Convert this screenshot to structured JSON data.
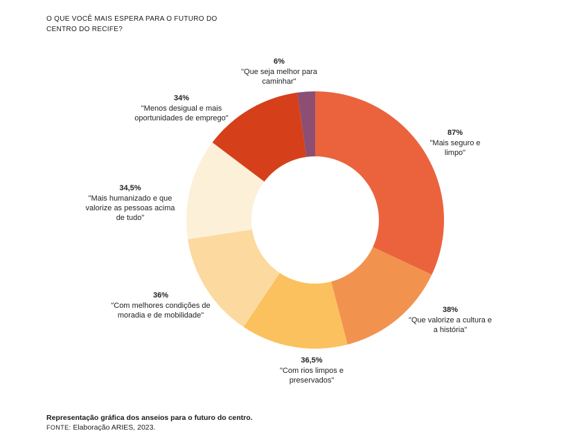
{
  "header": {
    "title_line1": "O QUE VOCÊ MAIS ESPERA PARA O FUTURO DO",
    "title_line2": "CENTRO DO RECIFE?"
  },
  "chart_data": {
    "type": "pie",
    "variant": "donut",
    "slices": [
      {
        "pct_label": "87%",
        "value": 87,
        "label_lines": [
          "\"Mais seguro e",
          "limpo\""
        ],
        "color": "#ea633d"
      },
      {
        "pct_label": "38%",
        "value": 38,
        "label_lines": [
          "\"Que valorize a cultura e",
          "a história\""
        ],
        "color": "#f2924f"
      },
      {
        "pct_label": "36,5%",
        "value": 36.5,
        "label_lines": [
          "\"Com rios limpos e",
          "preservados\""
        ],
        "color": "#fbc15f"
      },
      {
        "pct_label": "36%",
        "value": 36,
        "label_lines": [
          "\"Com melhores condições de",
          "moradia e de mobilidade\""
        ],
        "color": "#fcd99e"
      },
      {
        "pct_label": "34,5%",
        "value": 34.5,
        "label_lines": [
          "\"Mais humanizado e que",
          "valorize as pessoas acima",
          "de tudo\""
        ],
        "color": "#fdf0d9"
      },
      {
        "pct_label": "34%",
        "value": 34,
        "label_lines": [
          "\"Menos desigual e mais",
          "oportunidades de emprego\""
        ],
        "color": "#d5401b"
      },
      {
        "pct_label": "6%",
        "value": 6,
        "label_lines": [
          "\"Que seja melhor para",
          "caminhar\""
        ],
        "color": "#8c4f73"
      }
    ]
  },
  "caption": {
    "main": "Representação gráfica dos anseios para o futuro do centro.",
    "source_label": "FONTE:",
    "source_text": " Elaboração ARIES, 2023."
  }
}
